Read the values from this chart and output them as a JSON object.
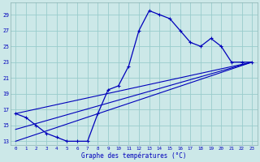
{
  "xlabel": "Graphe des températures (°C)",
  "bg_color": "#cce8e8",
  "line_color": "#0000bb",
  "grid_color": "#99cccc",
  "xlim": [
    -0.5,
    23.5
  ],
  "ylim": [
    12.5,
    30.5
  ],
  "yticks": [
    13,
    15,
    17,
    19,
    21,
    23,
    25,
    27,
    29
  ],
  "xticks": [
    0,
    1,
    2,
    3,
    4,
    5,
    6,
    7,
    8,
    9,
    10,
    11,
    12,
    13,
    14,
    15,
    16,
    17,
    18,
    19,
    20,
    21,
    22,
    23
  ],
  "temp_curve_x": [
    0,
    1,
    2,
    3,
    4,
    5,
    6,
    7,
    8,
    9,
    10,
    11,
    12,
    13,
    14,
    15,
    16,
    17,
    18,
    19,
    20,
    21,
    22,
    23
  ],
  "temp_curve_y": [
    16.5,
    16.0,
    15.0,
    14.0,
    13.5,
    13.0,
    13.0,
    13.0,
    16.5,
    19.5,
    20.0,
    22.5,
    27.0,
    29.5,
    29.0,
    28.5,
    27.0,
    25.5,
    25.0,
    26.0,
    25.0,
    23.0,
    23.0,
    23.0
  ],
  "line1_x": [
    0,
    23
  ],
  "line1_y": [
    13.0,
    23.0
  ],
  "line2_x": [
    0,
    23
  ],
  "line2_y": [
    14.5,
    23.0
  ],
  "line3_x": [
    0,
    23
  ],
  "line3_y": [
    16.5,
    23.0
  ]
}
